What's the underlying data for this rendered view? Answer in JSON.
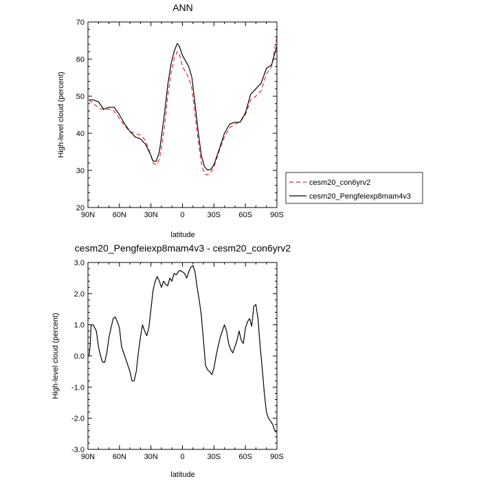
{
  "chart_data": [
    {
      "type": "line",
      "title": "ANN",
      "xlabel": "latitude",
      "ylabel": "High-level cloud (percent)",
      "xlim": [
        90,
        -90
      ],
      "ylim": [
        20,
        70
      ],
      "x_ticks": [
        90,
        60,
        30,
        0,
        -30,
        -60,
        -90
      ],
      "x_tick_labels": [
        "90N",
        "60N",
        "30N",
        "0",
        "30S",
        "60S",
        "90S"
      ],
      "y_ticks": [
        20,
        30,
        40,
        50,
        60,
        70
      ],
      "y_tick_labels": [
        "20",
        "30",
        "40",
        "50",
        "60",
        "70"
      ],
      "legend_position": "right",
      "series": [
        {
          "name": "cesm20_con6yrv2",
          "color": "#e8232a",
          "dash": "dashed",
          "x": [
            89,
            85,
            80,
            75,
            70,
            65,
            60,
            55,
            50,
            45,
            40,
            35,
            30,
            28,
            25,
            22,
            20,
            17,
            14,
            11,
            8,
            5,
            3,
            0,
            -3,
            -6,
            -9,
            -12,
            -15,
            -18,
            -21,
            -24,
            -27,
            -30,
            -33,
            -36,
            -40,
            -45,
            -50,
            -55,
            -60,
            -65,
            -70,
            -75,
            -80,
            -85,
            -88,
            -90
          ],
          "y": [
            49,
            48,
            47,
            46.3,
            46.5,
            46,
            44,
            42,
            40.5,
            40,
            39.5,
            38,
            34,
            32,
            31.5,
            33,
            36,
            42,
            50,
            56,
            60,
            62,
            61.5,
            58,
            56.5,
            55,
            52,
            45,
            38,
            32,
            29,
            28.8,
            29.5,
            31,
            33.5,
            36,
            39,
            41.5,
            42.5,
            43,
            45,
            49,
            50,
            51.5,
            56,
            58,
            63,
            65.8
          ]
        },
        {
          "name": "cesm20_Pengfeiexp8mam4v3",
          "color": "#000000",
          "dash": "solid",
          "x": [
            89,
            85,
            80,
            75,
            70,
            65,
            60,
            55,
            50,
            45,
            40,
            35,
            30,
            28,
            25,
            22,
            20,
            17,
            14,
            11,
            8,
            5,
            3,
            0,
            -3,
            -6,
            -9,
            -12,
            -15,
            -18,
            -21,
            -24,
            -27,
            -30,
            -33,
            -36,
            -40,
            -45,
            -50,
            -55,
            -60,
            -65,
            -70,
            -75,
            -80,
            -85,
            -88,
            -90
          ],
          "y": [
            49,
            49,
            48.5,
            46.5,
            47,
            47,
            45,
            42.5,
            40.5,
            39,
            38.5,
            37,
            34,
            32.5,
            32.5,
            35,
            39,
            45.5,
            53,
            58.5,
            62,
            64.2,
            63.5,
            61,
            59.5,
            58,
            55,
            48,
            40.5,
            34,
            31,
            30.1,
            30.3,
            31.5,
            34,
            36.5,
            40,
            42.5,
            43,
            43,
            45.5,
            50.5,
            52,
            53.5,
            57.5,
            58.5,
            61.5,
            63.5
          ]
        }
      ]
    },
    {
      "type": "line",
      "title": "cesm20_Pengfeiexp8mam4v3 - cesm20_con6yrv2",
      "xlabel": "latitude",
      "ylabel": "High-level cloud (percent)",
      "xlim": [
        90,
        -90
      ],
      "ylim": [
        -3.0,
        3.0
      ],
      "x_ticks": [
        90,
        60,
        30,
        0,
        -30,
        -60,
        -90
      ],
      "x_tick_labels": [
        "90N",
        "60N",
        "30N",
        "0",
        "30S",
        "60S",
        "90S"
      ],
      "y_ticks": [
        -3.0,
        -2.0,
        -1.0,
        0.0,
        1.0,
        2.0,
        3.0
      ],
      "y_tick_labels": [
        "-3.0",
        "-2.0",
        "-1.0",
        "0.0",
        "1.0",
        "2.0",
        "3.0"
      ],
      "series": [
        {
          "color": "#000000",
          "dash": "solid",
          "x": [
            89,
            88,
            87,
            85,
            82,
            80,
            78,
            76,
            74,
            72,
            70,
            68,
            66,
            64,
            62,
            60,
            58,
            56,
            54,
            52,
            50,
            48,
            46,
            44,
            42,
            40,
            38,
            36,
            34,
            32,
            30,
            28,
            26,
            24,
            22,
            20,
            18,
            16,
            14,
            12,
            10,
            8,
            6,
            4,
            2,
            0,
            -2,
            -4,
            -6,
            -8,
            -10,
            -12,
            -14,
            -16,
            -18,
            -20,
            -22,
            -24,
            -26,
            -28,
            -30,
            -32,
            -34,
            -36,
            -38,
            -40,
            -42,
            -44,
            -46,
            -48,
            -50,
            -52,
            -54,
            -56,
            -58,
            -60,
            -62,
            -64,
            -66,
            -68,
            -70,
            -72,
            -74,
            -76,
            -78,
            -80,
            -82,
            -84,
            -86,
            -88,
            -89.5
          ],
          "y": [
            0.0,
            0.3,
            1.0,
            1.0,
            0.8,
            0.3,
            0.0,
            -0.2,
            -0.2,
            0.1,
            0.6,
            0.9,
            1.2,
            1.25,
            1.1,
            0.9,
            0.3,
            0.1,
            -0.1,
            -0.3,
            -0.5,
            -0.8,
            -0.8,
            -0.5,
            0.1,
            0.6,
            1.0,
            0.8,
            0.65,
            0.9,
            1.5,
            2.1,
            2.4,
            2.55,
            2.4,
            2.2,
            2.4,
            2.3,
            2.25,
            2.5,
            2.4,
            2.65,
            2.6,
            2.7,
            2.75,
            2.7,
            2.65,
            2.5,
            2.7,
            2.85,
            2.9,
            2.7,
            2.2,
            1.8,
            1.3,
            0.5,
            -0.3,
            -0.45,
            -0.5,
            -0.6,
            -0.4,
            0.0,
            0.3,
            0.6,
            0.8,
            1.0,
            0.8,
            0.4,
            0.2,
            0.1,
            0.3,
            0.5,
            0.8,
            0.5,
            0.4,
            0.9,
            1.1,
            1.2,
            0.95,
            1.6,
            1.65,
            1.2,
            0.3,
            -0.4,
            -1.2,
            -1.8,
            -2.0,
            -2.1,
            -2.2,
            -2.4,
            -2.45
          ]
        }
      ]
    }
  ]
}
